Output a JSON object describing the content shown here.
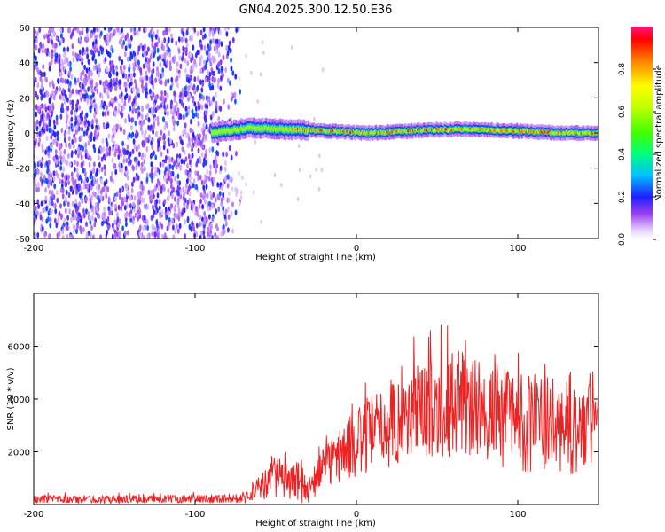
{
  "title": "GN04.2025.300.12.50.E36",
  "chart_data": [
    {
      "type": "heatmap",
      "xlabel": "Height of straight line (km)",
      "ylabel": "Frequency (Hz)",
      "xlim": [
        -200,
        150
      ],
      "ylim": [
        -60,
        60
      ],
      "xticks": [
        -200,
        -100,
        0,
        100
      ],
      "yticks": [
        -60,
        -40,
        -20,
        0,
        20,
        40,
        60
      ],
      "grid": false,
      "colorbar": {
        "label": "Normalized spectral amplitude",
        "range": [
          0.0,
          1.0
        ],
        "ticks": [
          0.0,
          0.2,
          0.4,
          0.6,
          0.8
        ]
      },
      "regions": [
        {
          "name": "broadband noise",
          "x_range": [
            -200,
            -80
          ],
          "y_range": [
            -60,
            60
          ],
          "amplitude": [
            0.05,
            0.25
          ]
        },
        {
          "name": "signal band",
          "x_range": [
            -90,
            150
          ],
          "freq_hz": [
            0,
            3,
            2,
            1,
            0,
            1,
            2,
            2,
            1,
            0,
            0
          ],
          "amplitude_peak": 0.95
        }
      ]
    },
    {
      "type": "line",
      "xlabel": "Height of straight line (km)",
      "ylabel": "SNR (10 * v/v)",
      "xlim": [
        -200,
        150
      ],
      "ylim": [
        0,
        8000
      ],
      "xticks": [
        -200,
        -100,
        0,
        100
      ],
      "yticks": [
        2000,
        4000,
        6000
      ],
      "grid": false,
      "series": [
        {
          "name": "SNR",
          "color": "#ee2222",
          "x": [
            -200,
            -150,
            -100,
            -70,
            -60,
            -50,
            -40,
            -35,
            -30,
            -20,
            -10,
            0,
            10,
            20,
            40,
            60,
            80,
            100,
            120,
            140,
            150
          ],
          "mean": [
            200,
            200,
            220,
            240,
            600,
            1100,
            800,
            1000,
            500,
            1400,
            1900,
            2300,
            2700,
            3000,
            3600,
            3800,
            3500,
            3200,
            3000,
            2800,
            3000
          ],
          "spread": [
            150,
            150,
            150,
            180,
            500,
            800,
            600,
            900,
            500,
            800,
            1100,
            1300,
            1500,
            1600,
            1800,
            2000,
            1900,
            2000,
            1800,
            1700,
            1800
          ]
        }
      ]
    }
  ]
}
